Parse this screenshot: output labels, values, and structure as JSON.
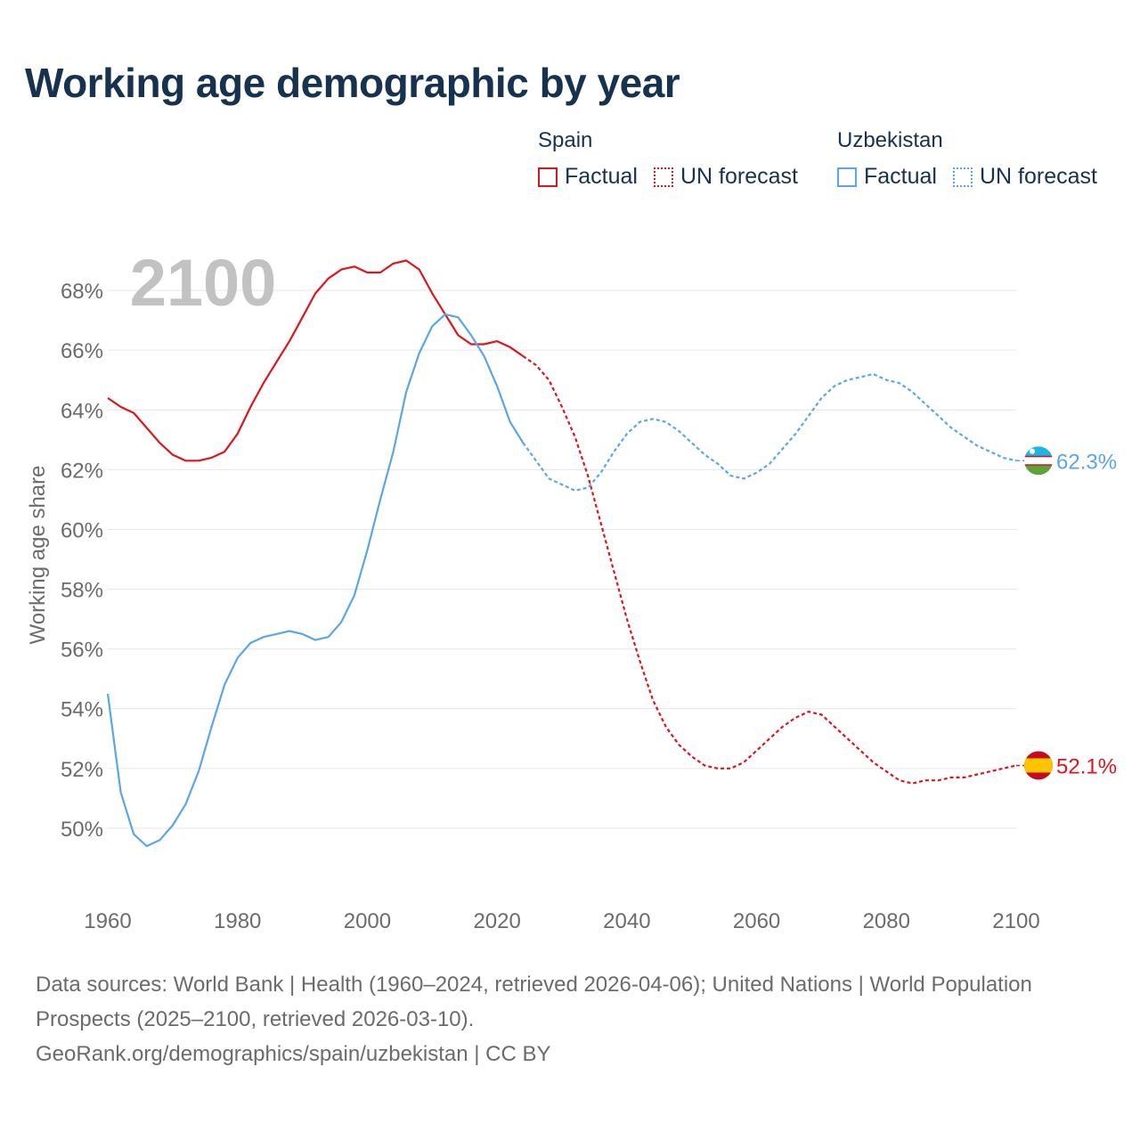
{
  "title": "Working age demographic by year",
  "legend": {
    "groups": [
      {
        "country": "Spain",
        "factual_label": "Factual",
        "forecast_label": "UN forecast",
        "color": "#e0141c"
      },
      {
        "country": "Uzbekistan",
        "factual_label": "Factual",
        "forecast_label": "UN forecast",
        "color": "#5aa6e6"
      }
    ]
  },
  "year_watermark": "2100",
  "footer": {
    "sources": "Data sources: World Bank | Health (1960–2024, retrieved 2026-04-06); United Nations | World Population Prospects (2025–2100, retrieved 2026-03-10).",
    "link": "GeoRank.org/demographics/spain/uzbekistan | CC BY"
  },
  "chart_data": {
    "type": "line",
    "title": "Working age demographic by year",
    "xlabel": "",
    "ylabel": "Working age share",
    "xlim": [
      1960,
      2100
    ],
    "ylim": [
      48,
      70
    ],
    "x_ticks": [
      1960,
      1980,
      2000,
      2020,
      2040,
      2060,
      2080,
      2100
    ],
    "x_tick_labels": [
      "1960",
      "1980",
      "2000",
      "2020",
      "2040",
      "2060",
      "2080",
      "2100"
    ],
    "y_ticks": [
      50,
      52,
      54,
      56,
      58,
      60,
      62,
      64,
      66,
      68
    ],
    "y_tick_labels": [
      "50%",
      "52%",
      "54%",
      "56%",
      "58%",
      "60%",
      "62%",
      "64%",
      "66%",
      "68%"
    ],
    "grid": true,
    "forecast_start": 2024,
    "series": [
      {
        "name": "Spain",
        "color": "#e0141c",
        "end_label": "52.1%",
        "x": [
          1960,
          1962,
          1964,
          1966,
          1968,
          1970,
          1972,
          1974,
          1976,
          1978,
          1980,
          1982,
          1984,
          1986,
          1988,
          1990,
          1992,
          1994,
          1996,
          1998,
          2000,
          2002,
          2004,
          2006,
          2008,
          2010,
          2012,
          2014,
          2016,
          2018,
          2020,
          2022,
          2024,
          2026,
          2028,
          2030,
          2032,
          2034,
          2036,
          2038,
          2040,
          2042,
          2044,
          2046,
          2048,
          2050,
          2052,
          2054,
          2056,
          2058,
          2060,
          2062,
          2064,
          2066,
          2068,
          2070,
          2072,
          2074,
          2076,
          2078,
          2080,
          2082,
          2084,
          2086,
          2088,
          2090,
          2092,
          2094,
          2096,
          2098,
          2100
        ],
        "values": [
          64.4,
          64.1,
          63.9,
          63.4,
          62.9,
          62.5,
          62.3,
          62.3,
          62.4,
          62.6,
          63.2,
          64.1,
          64.9,
          65.6,
          66.3,
          67.1,
          67.9,
          68.4,
          68.7,
          68.8,
          68.6,
          68.6,
          68.9,
          69.0,
          68.7,
          67.9,
          67.2,
          66.5,
          66.2,
          66.2,
          66.3,
          66.1,
          65.8,
          65.5,
          65.0,
          64.1,
          63.1,
          61.8,
          60.2,
          58.6,
          57.0,
          55.6,
          54.3,
          53.4,
          52.8,
          52.4,
          52.1,
          52.0,
          52.0,
          52.2,
          52.6,
          53.0,
          53.4,
          53.7,
          53.9,
          53.8,
          53.4,
          53.0,
          52.6,
          52.2,
          51.9,
          51.6,
          51.5,
          51.6,
          51.6,
          51.7,
          51.7,
          51.8,
          51.9,
          52.0,
          52.1
        ]
      },
      {
        "name": "Uzbekistan",
        "color": "#5aa6e6",
        "end_label": "62.3%",
        "x": [
          1960,
          1962,
          1964,
          1966,
          1968,
          1970,
          1972,
          1974,
          1976,
          1978,
          1980,
          1982,
          1984,
          1986,
          1988,
          1990,
          1992,
          1994,
          1996,
          1998,
          2000,
          2002,
          2004,
          2006,
          2008,
          2010,
          2012,
          2014,
          2016,
          2018,
          2020,
          2022,
          2024,
          2026,
          2028,
          2030,
          2032,
          2034,
          2036,
          2038,
          2040,
          2042,
          2044,
          2046,
          2048,
          2050,
          2052,
          2054,
          2056,
          2058,
          2060,
          2062,
          2064,
          2066,
          2068,
          2070,
          2072,
          2074,
          2076,
          2078,
          2080,
          2082,
          2084,
          2086,
          2088,
          2090,
          2092,
          2094,
          2096,
          2098,
          2100
        ],
        "values": [
          54.5,
          51.2,
          49.8,
          49.4,
          49.6,
          50.1,
          50.8,
          51.9,
          53.4,
          54.8,
          55.7,
          56.2,
          56.4,
          56.5,
          56.6,
          56.5,
          56.3,
          56.4,
          56.9,
          57.8,
          59.3,
          61.0,
          62.6,
          64.6,
          65.9,
          66.8,
          67.2,
          67.1,
          66.5,
          65.8,
          64.8,
          63.6,
          62.9,
          62.3,
          61.7,
          61.5,
          61.3,
          61.4,
          61.9,
          62.6,
          63.2,
          63.6,
          63.7,
          63.6,
          63.3,
          62.9,
          62.5,
          62.2,
          61.8,
          61.7,
          61.9,
          62.2,
          62.7,
          63.2,
          63.8,
          64.4,
          64.8,
          65.0,
          65.1,
          65.2,
          65.0,
          64.9,
          64.6,
          64.2,
          63.8,
          63.4,
          63.1,
          62.8,
          62.6,
          62.4,
          62.3
        ]
      }
    ]
  }
}
